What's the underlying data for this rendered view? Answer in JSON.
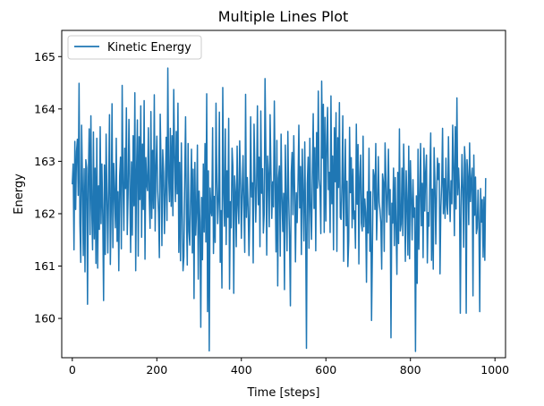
{
  "chart_data": {
    "type": "line",
    "title": "Multiple Lines Plot",
    "xlabel": "Time [steps]",
    "ylabel": "Energy",
    "xlim": [
      -25,
      1025
    ],
    "ylim": [
      159.25,
      165.5
    ],
    "xticks": [
      0,
      200,
      400,
      600,
      800,
      1000
    ],
    "yticks": [
      160,
      161,
      162,
      163,
      164,
      165
    ],
    "grid": false,
    "legend_position": "upper-left",
    "series": [
      {
        "name": "Kinetic Energy",
        "color": "#1f77b4",
        "x_start": 0,
        "x_step": 2,
        "values": [
          162.56,
          162.95,
          161.31,
          163.38,
          162.08,
          163.19,
          163.42,
          162.35,
          164.49,
          161.82,
          161.07,
          163.69,
          162.63,
          161.2,
          162.86,
          160.89,
          163.03,
          162.87,
          160.27,
          162.71,
          163.62,
          161.6,
          163.87,
          162.09,
          161.31,
          163.56,
          161.52,
          162.87,
          161.05,
          163.44,
          160.96,
          162.53,
          161.7,
          163.66,
          161.81,
          162.95,
          161.99,
          160.34,
          162.93,
          161.22,
          163.52,
          162.34,
          161.25,
          162.47,
          163.89,
          161.03,
          162.07,
          164.1,
          161.35,
          162.96,
          162.38,
          161.73,
          163.44,
          161.47,
          162.42,
          160.91,
          162.71,
          163.08,
          161.33,
          164.45,
          162.57,
          161.68,
          163.25,
          162.48,
          164.02,
          161.6,
          162.38,
          163.8,
          162.61,
          161.26,
          162.99,
          161.59,
          163.49,
          162.15,
          164.31,
          160.91,
          162.82,
          163.79,
          161.19,
          163.47,
          162.27,
          164.06,
          161.55,
          163.33,
          162.08,
          164.16,
          161.13,
          163.07,
          162.55,
          162.44,
          163.64,
          162.3,
          161.72,
          163.95,
          161.91,
          163.21,
          162.1,
          164.27,
          161.67,
          162.85,
          163.48,
          162.44,
          162.02,
          161.16,
          163.9,
          162.93,
          161.39,
          163.22,
          162.79,
          161.62,
          162.4,
          163.46,
          161.87,
          164.78,
          162.72,
          162.23,
          163.63,
          162.14,
          163.49,
          161.96,
          164.37,
          163.11,
          162.23,
          163.57,
          162.38,
          164.11,
          161.26,
          162.98,
          161.1,
          163.35,
          162.03,
          160.91,
          161.18,
          162.71,
          163.85,
          161.98,
          161.02,
          163.34,
          161.66,
          161.4,
          162.32,
          163.23,
          161.25,
          162.85,
          160.38,
          162.98,
          161.59,
          162.06,
          163.31,
          160.75,
          162.43,
          161.84,
          159.83,
          162.31,
          161.12,
          162.95,
          161.65,
          163.34,
          161.46,
          164.29,
          160.13,
          162.82,
          159.38,
          162.49,
          162.06,
          161.96,
          163.64,
          161.24,
          162.33,
          161.45,
          164.11,
          162.64,
          161.81,
          162.24,
          163.94,
          161.07,
          162.06,
          160.58,
          164.41,
          162.44,
          161.76,
          163.62,
          161.41,
          162.82,
          161.93,
          163.82,
          160.56,
          162.23,
          161.73,
          163.25,
          162.89,
          160.48,
          162.72,
          162.4,
          161.37,
          163.29,
          162.17,
          161.81,
          163.39,
          162.66,
          161.53,
          162.42,
          163.11,
          162.06,
          161.26,
          164.28,
          161.93,
          162.69,
          162.12,
          161.2,
          162.01,
          163.85,
          162.32,
          162.59,
          161.06,
          163.71,
          162.8,
          161.84,
          162.55,
          164.06,
          162.17,
          163.08,
          161.37,
          163.96,
          162.39,
          162.86,
          161.63,
          161.99,
          164.58,
          163.19,
          161.21,
          163.1,
          162.73,
          161.75,
          163.89,
          162.82,
          161.91,
          162.61,
          162.13,
          164.15,
          162.57,
          161.27,
          163.4,
          160.62,
          162.68,
          162.91,
          161.19,
          163.52,
          162.34,
          161.66,
          162.39,
          160.55,
          163.31,
          162.15,
          161.29,
          163.57,
          162.3,
          161.53,
          160.24,
          162.78,
          163.17,
          161.98,
          163.49,
          162.46,
          161.08,
          162.4,
          161.83,
          162.57,
          163.69,
          162.11,
          162.9,
          161.22,
          163.23,
          162.34,
          161.48,
          163.37,
          161.86,
          159.43,
          162.57,
          163.08,
          161.34,
          163.44,
          162.12,
          161.51,
          162.75,
          163.91,
          162.1,
          163.26,
          161.29,
          163.55,
          162.49,
          164.34,
          162.66,
          162.48,
          161.62,
          164.53,
          163.06,
          164.09,
          161.64,
          163.84,
          161.86,
          163.3,
          164.03,
          162.46,
          162.79,
          161.64,
          164.25,
          162.19,
          163.1,
          161.31,
          163.64,
          162.61,
          163.93,
          161.28,
          163.45,
          162.5,
          164.12,
          161.93,
          161.89,
          162.57,
          163.87,
          161.09,
          162.5,
          163.42,
          161.77,
          162.62,
          160.99,
          161.48,
          163.65,
          162.4,
          163.07,
          161.73,
          162.85,
          161.9,
          162.05,
          161.34,
          163.71,
          162.18,
          163.32,
          161.04,
          162.7,
          163.12,
          161.82,
          161.67,
          163.48,
          161.75,
          162.28,
          162.02,
          160.69,
          162.42,
          161.63,
          163.25,
          161.28,
          162.42,
          159.96,
          161.3,
          162.84,
          162.72,
          162.08,
          163.34,
          161.5,
          162.16,
          163.09,
          162.22,
          162.07,
          161.82,
          160.94,
          162.76,
          162.6,
          161.28,
          163.35,
          162.69,
          161.84,
          162.31,
          163.23,
          161.98,
          162.46,
          159.63,
          162.2,
          161.82,
          162.87,
          161.39,
          162.69,
          161.73,
          160.84,
          162.79,
          161.43,
          163.62,
          161.67,
          161.8,
          162.87,
          161.58,
          163.33,
          162.42,
          161.09,
          162.82,
          162.18,
          161.21,
          163.29,
          161.14,
          163.01,
          162.31,
          161.5,
          162.65,
          161.93,
          162.11,
          159.37,
          162.34,
          160.67,
          163.23,
          161.32,
          162.3,
          163.34,
          161.77,
          162.58,
          161.16,
          163.25,
          162.05,
          162.79,
          163.12,
          161.06,
          162.02,
          161.76,
          162.72,
          163.54,
          161.11,
          162.47,
          160.94,
          163.26,
          162.6,
          161.42,
          162.43,
          163.06,
          162.65,
          162.96,
          160.85,
          162.12,
          162.56,
          163.63,
          162.0,
          162.67,
          161.91,
          163.06,
          162.17,
          161.99,
          163.47,
          162.45,
          161.85,
          162.63,
          162.19,
          163.69,
          162.91,
          161.58,
          163.66,
          162.09,
          164.21,
          162.36,
          162.87,
          162.44,
          160.1,
          162.13,
          163.13,
          162.49,
          161.36,
          163.28,
          162.94,
          160.1,
          163.03,
          162.71,
          161.79,
          163.35,
          162.23,
          162.63,
          162.87,
          160.43,
          163.12,
          161.97,
          162.7,
          161.62,
          161.73,
          162.45,
          161.82,
          160.13,
          162.48,
          161.84,
          162.27,
          161.17,
          162.32,
          161.11,
          162.68
        ]
      }
    ]
  }
}
